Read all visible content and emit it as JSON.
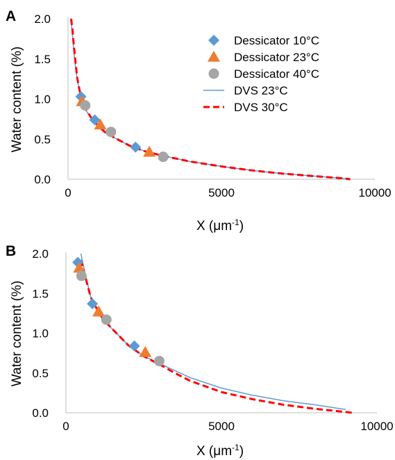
{
  "chart_data": [
    {
      "panel": "A",
      "type": "scatter",
      "xlabel_main": "X (μm",
      "xlabel_sup": "-1",
      "xlabel_end": ")",
      "ylabel": "Water content (%)",
      "xlim": [
        0,
        10000
      ],
      "ylim": [
        0,
        2.0
      ],
      "xticks": [
        "0",
        "5000",
        "10000"
      ],
      "yticks": [
        "0.0",
        "0.5",
        "1.0",
        "1.5",
        "2.0"
      ],
      "legend_position": "top-right",
      "series": [
        {
          "name": "Dessicator 10°C",
          "kind": "marker",
          "marker": "diamond",
          "color": "#5b9bd5",
          "x": [
            420,
            870,
            2200
          ],
          "y": [
            1.03,
            0.74,
            0.4
          ]
        },
        {
          "name": "Dessicator 23°C",
          "kind": "marker",
          "marker": "triangle",
          "color": "#ed7d31",
          "x": [
            460,
            1050,
            2650
          ],
          "y": [
            0.97,
            0.68,
            0.34
          ]
        },
        {
          "name": "Dessicator 40°C",
          "kind": "marker",
          "marker": "circle",
          "color": "#a5a5a5",
          "x": [
            560,
            1400,
            3100
          ],
          "y": [
            0.92,
            0.59,
            0.28
          ]
        },
        {
          "name": "DVS 23°C",
          "kind": "line",
          "dash": "solid",
          "color": "#5b9bd5",
          "x": [
            80,
            120,
            160,
            200,
            250,
            300,
            400,
            500,
            600,
            800,
            1000,
            1200,
            1500,
            2000,
            2500,
            3000,
            3500,
            4000,
            5000,
            6000,
            7000,
            8000,
            9000,
            9200
          ],
          "y": [
            2.0,
            1.9,
            1.72,
            1.55,
            1.38,
            1.24,
            1.05,
            0.93,
            0.85,
            0.73,
            0.65,
            0.58,
            0.52,
            0.42,
            0.35,
            0.3,
            0.26,
            0.22,
            0.16,
            0.11,
            0.07,
            0.04,
            0.01,
            0.0
          ]
        },
        {
          "name": "DVS 30°C",
          "kind": "line",
          "dash": "dashed",
          "color": "#ff0000",
          "x": [
            100,
            140,
            180,
            220,
            260,
            300,
            400,
            500,
            600,
            800,
            1000,
            1200,
            1500,
            2000,
            2500,
            3000,
            3500,
            4000,
            5000,
            6000,
            7000,
            8000,
            9000,
            9200
          ],
          "y": [
            2.0,
            1.88,
            1.7,
            1.55,
            1.4,
            1.26,
            1.06,
            0.94,
            0.86,
            0.74,
            0.66,
            0.59,
            0.52,
            0.42,
            0.35,
            0.3,
            0.26,
            0.22,
            0.16,
            0.11,
            0.07,
            0.04,
            0.01,
            0.0
          ]
        }
      ]
    },
    {
      "panel": "B",
      "type": "scatter",
      "xlabel_main": "X (μm",
      "xlabel_sup": "-1",
      "xlabel_end": ")",
      "ylabel": "Water content (%)",
      "xlim": [
        0,
        10000
      ],
      "ylim": [
        0,
        2.0
      ],
      "xticks": [
        "0",
        "5000",
        "10000"
      ],
      "yticks": [
        "0.0",
        "0.5",
        "1.0",
        "1.5",
        "2.0"
      ],
      "series": [
        {
          "name": "Dessicator 10°C",
          "kind": "marker",
          "marker": "diamond",
          "color": "#5b9bd5",
          "x": [
            380,
            850,
            2200
          ],
          "y": [
            1.89,
            1.37,
            0.84
          ]
        },
        {
          "name": "Dessicator 23°C",
          "kind": "marker",
          "marker": "triangle",
          "color": "#ed7d31",
          "x": [
            430,
            1050,
            2550
          ],
          "y": [
            1.82,
            1.27,
            0.76
          ]
        },
        {
          "name": "Dessicator 40°C",
          "kind": "marker",
          "marker": "circle",
          "color": "#a5a5a5",
          "x": [
            500,
            1300,
            3000
          ],
          "y": [
            1.72,
            1.17,
            0.65
          ]
        },
        {
          "name": "DVS 23°C",
          "kind": "line",
          "dash": "solid",
          "color": "#5b9bd5",
          "x": [
            480,
            600,
            800,
            1000,
            1200,
            1500,
            2000,
            2500,
            3000,
            3500,
            4000,
            5000,
            6000,
            7000,
            8000,
            9000
          ],
          "y": [
            2.0,
            1.78,
            1.45,
            1.3,
            1.17,
            1.05,
            0.85,
            0.71,
            0.62,
            0.53,
            0.44,
            0.31,
            0.22,
            0.15,
            0.1,
            0.04
          ]
        },
        {
          "name": "DVS 30°C",
          "kind": "line",
          "dash": "dashed",
          "color": "#ff0000",
          "x": [
            480,
            600,
            800,
            1000,
            1200,
            1500,
            2000,
            2500,
            3000,
            3500,
            4000,
            5000,
            6000,
            7000,
            8000,
            9000,
            9200
          ],
          "y": [
            1.92,
            1.74,
            1.45,
            1.3,
            1.17,
            1.05,
            0.85,
            0.71,
            0.61,
            0.5,
            0.4,
            0.26,
            0.17,
            0.1,
            0.05,
            0.01,
            0.0
          ]
        }
      ]
    }
  ]
}
